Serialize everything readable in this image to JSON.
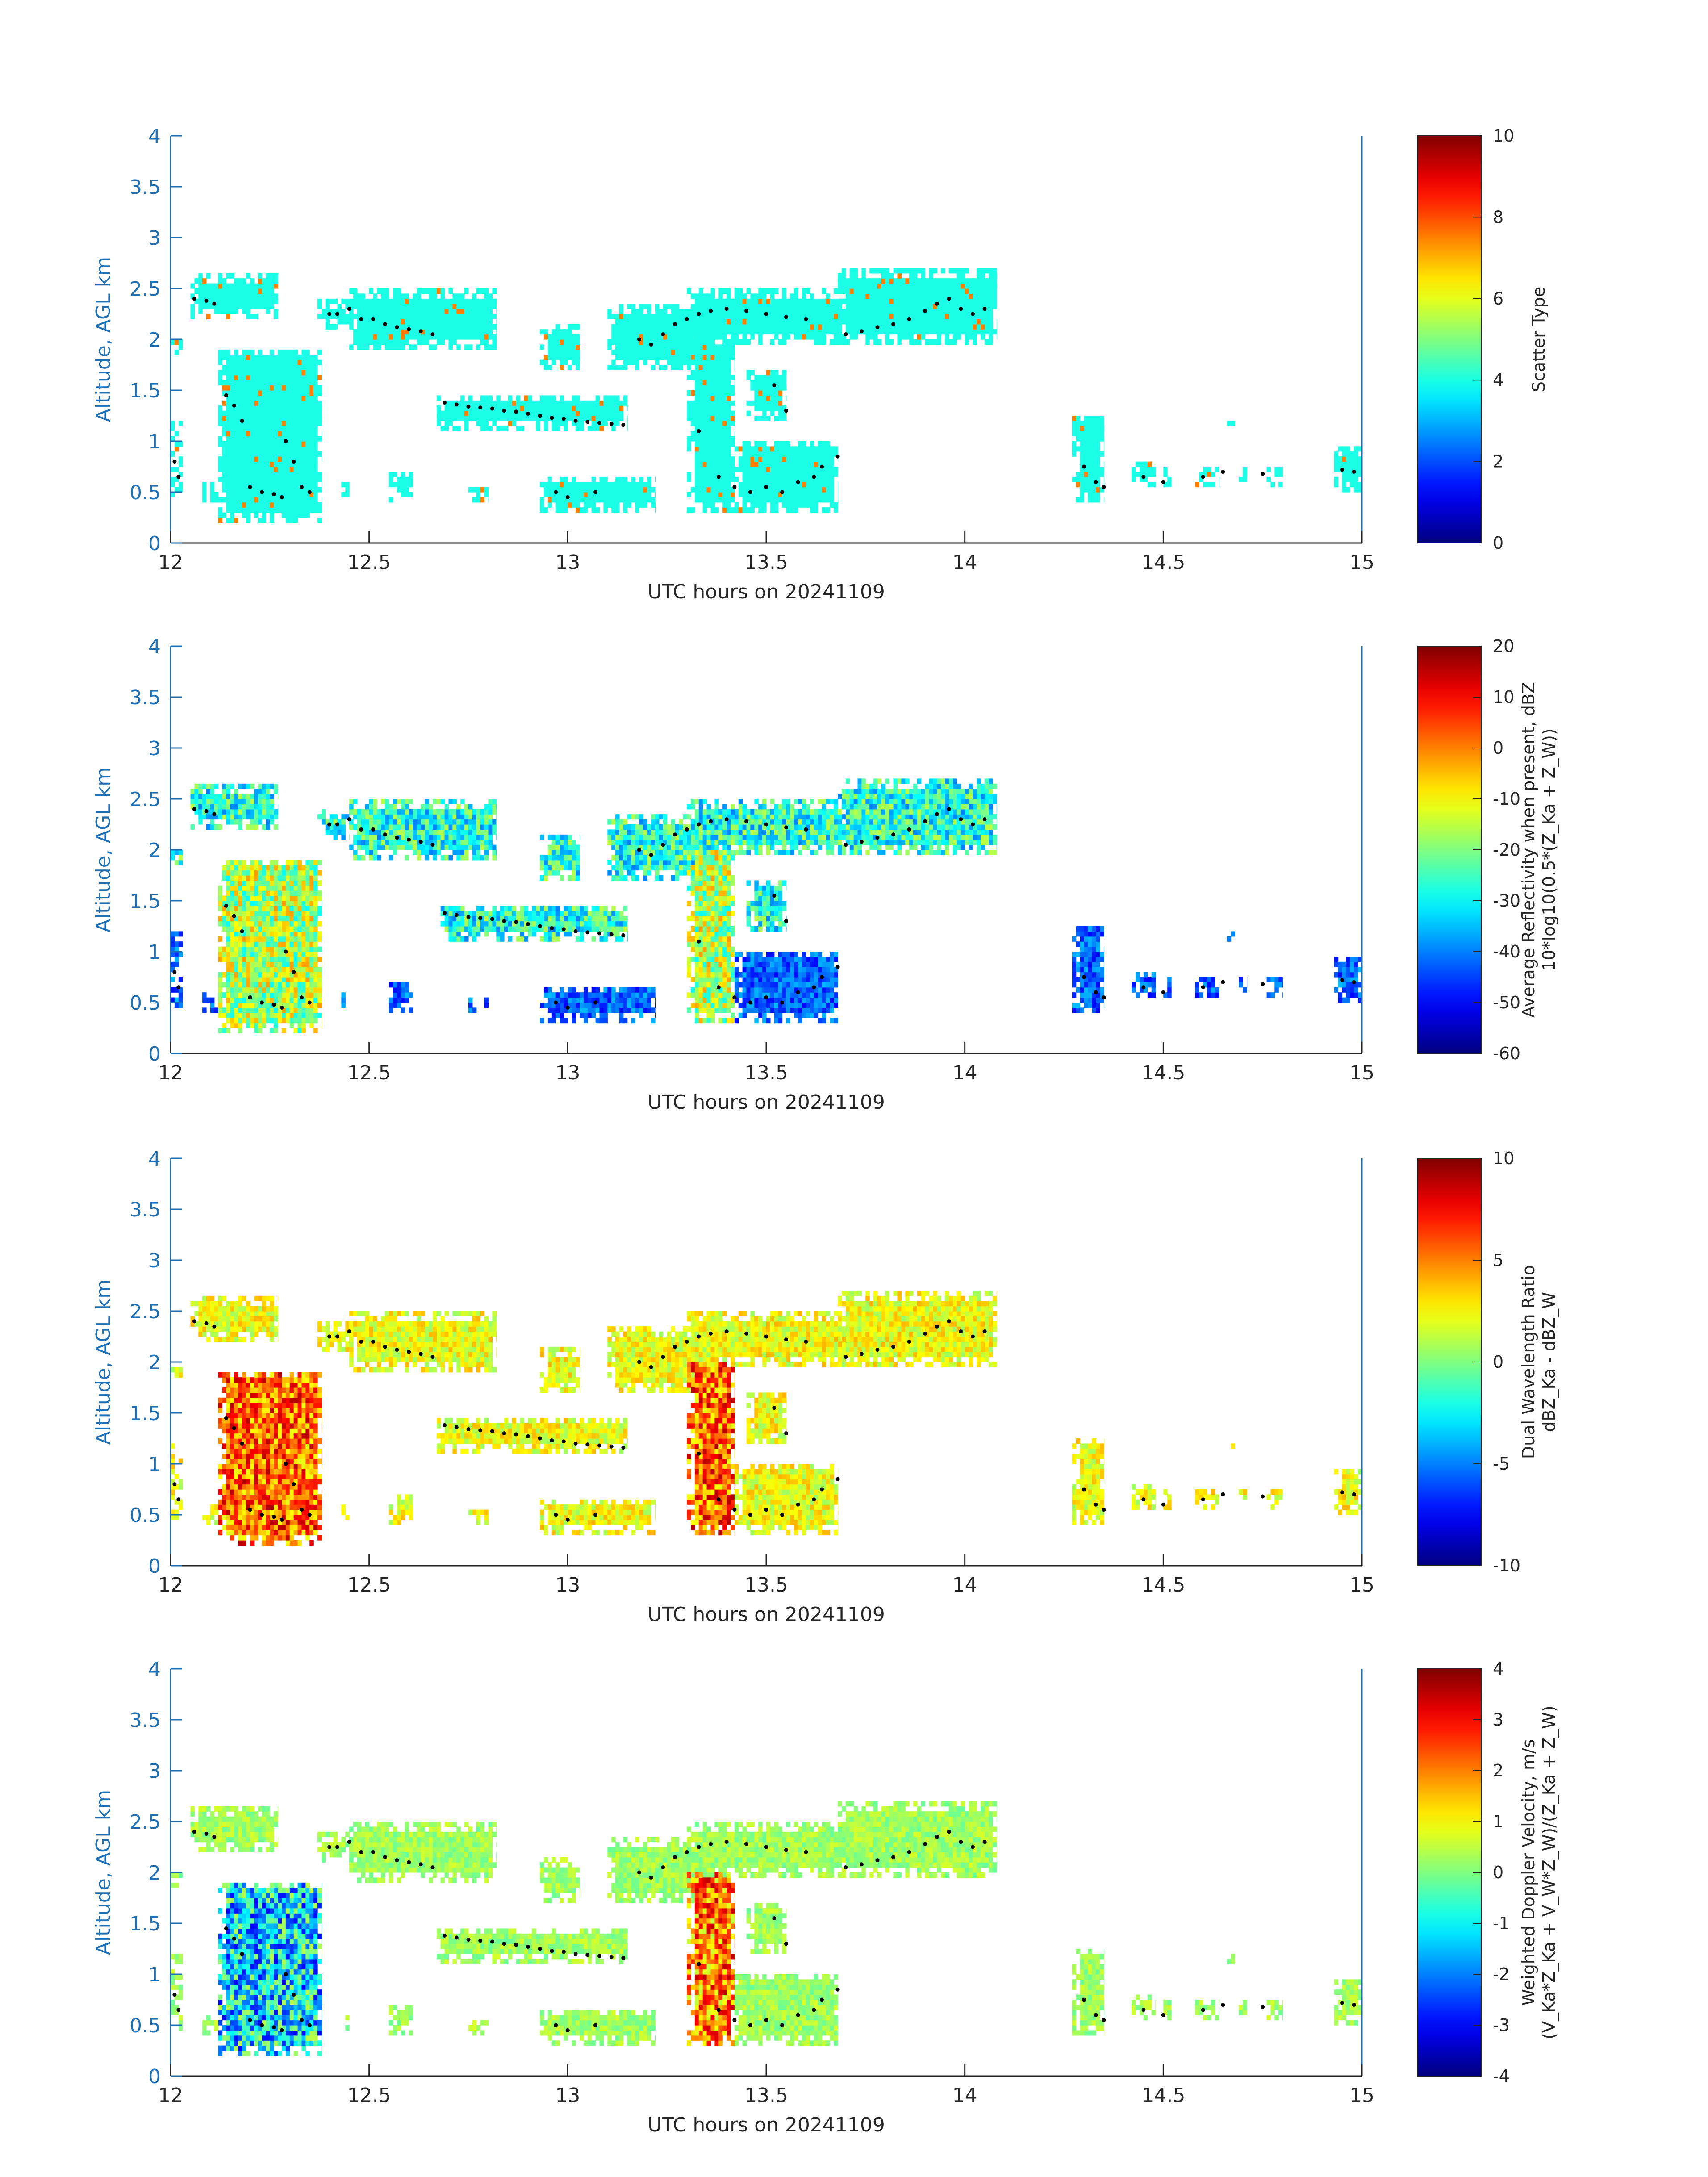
{
  "chart_data": [
    {
      "type": "heatmap",
      "xlabel": "UTC hours on 20241109",
      "ylabel": "Altitude, AGL km",
      "xlim": [
        12,
        15
      ],
      "ylim": [
        0,
        4
      ],
      "xticks": [
        "12",
        "12.5",
        "13",
        "13.5",
        "14",
        "14.5",
        "15"
      ],
      "yticks": [
        "0",
        "0.5",
        "1",
        "1.5",
        "2",
        "2.5",
        "3",
        "3.5",
        "4"
      ],
      "colorbar": {
        "label_lines": [
          "Scatter Type"
        ],
        "range": [
          0,
          10
        ],
        "ticks": [
          "0",
          "2",
          "4",
          "6",
          "8",
          "10"
        ],
        "colormap": "jet"
      },
      "approx_values": {
        "cloud_body": 4,
        "red_pixels": 7.5
      }
    },
    {
      "type": "heatmap",
      "xlabel": "UTC hours on 20241109",
      "ylabel": "Altitude, AGL km",
      "xlim": [
        12,
        15
      ],
      "ylim": [
        0,
        4
      ],
      "xticks": [
        "12",
        "12.5",
        "13",
        "13.5",
        "14",
        "14.5",
        "15"
      ],
      "yticks": [
        "0",
        "0.5",
        "1",
        "1.5",
        "2",
        "2.5",
        "3",
        "3.5",
        "4"
      ],
      "colorbar": {
        "label_lines": [
          "Average Reflectivity when present, dBZ",
          "10*log10(0.5*(Z_Ka + Z_W))"
        ],
        "range": [
          -60,
          20
        ],
        "ticks": [
          "-60",
          "-50",
          "-40",
          "-30",
          "-20",
          "-10",
          "0",
          "10",
          "20"
        ],
        "colormap": "jet"
      }
    },
    {
      "type": "heatmap",
      "xlabel": "UTC hours on 20241109",
      "ylabel": "Altitude, AGL km",
      "xlim": [
        12,
        15
      ],
      "ylim": [
        0,
        4
      ],
      "xticks": [
        "12",
        "12.5",
        "13",
        "13.5",
        "14",
        "14.5",
        "15"
      ],
      "yticks": [
        "0",
        "0.5",
        "1",
        "1.5",
        "2",
        "2.5",
        "3",
        "3.5",
        "4"
      ],
      "colorbar": {
        "label_lines": [
          "Dual Wavelength Ratio",
          "dBZ_Ka - dBZ_W"
        ],
        "range": [
          -10,
          10
        ],
        "ticks": [
          "-10",
          "-5",
          "0",
          "5",
          "10"
        ],
        "colormap": "jet"
      }
    },
    {
      "type": "heatmap",
      "xlabel": "UTC hours on 20241109",
      "ylabel": "Altitude, AGL km",
      "xlim": [
        12,
        15
      ],
      "ylim": [
        0,
        4
      ],
      "xticks": [
        "12",
        "12.5",
        "13",
        "13.5",
        "14",
        "14.5",
        "15"
      ],
      "yticks": [
        "0",
        "0.5",
        "1",
        "1.5",
        "2",
        "2.5",
        "3",
        "3.5",
        "4"
      ],
      "colorbar": {
        "label_lines": [
          "Weighted Doppler Velocity, m/s",
          "(V_Ka*Z_Ka + V_W*Z_W)/(Z_Ka + Z_W)"
        ],
        "range": [
          -4,
          4
        ],
        "ticks": [
          "-4",
          "-3",
          "-2",
          "-1",
          "0",
          "1",
          "2",
          "3",
          "4"
        ],
        "colormap": "jet"
      }
    }
  ],
  "overlay": {
    "name": "black dot track",
    "points": [
      [
        12.01,
        0.8
      ],
      [
        12.02,
        0.65
      ],
      [
        12.06,
        2.4
      ],
      [
        12.09,
        2.38
      ],
      [
        12.11,
        2.35
      ],
      [
        12.14,
        1.45
      ],
      [
        12.16,
        1.35
      ],
      [
        12.18,
        1.2
      ],
      [
        12.2,
        0.55
      ],
      [
        12.23,
        0.5
      ],
      [
        12.26,
        0.48
      ],
      [
        12.28,
        0.45
      ],
      [
        12.29,
        1.0
      ],
      [
        12.31,
        0.8
      ],
      [
        12.33,
        0.55
      ],
      [
        12.35,
        0.5
      ],
      [
        12.4,
        2.25
      ],
      [
        12.42,
        2.25
      ],
      [
        12.45,
        2.3
      ],
      [
        12.48,
        2.2
      ],
      [
        12.51,
        2.2
      ],
      [
        12.54,
        2.15
      ],
      [
        12.57,
        2.12
      ],
      [
        12.6,
        2.1
      ],
      [
        12.63,
        2.08
      ],
      [
        12.66,
        2.05
      ],
      [
        12.69,
        1.38
      ],
      [
        12.72,
        1.36
      ],
      [
        12.75,
        1.34
      ],
      [
        12.78,
        1.33
      ],
      [
        12.81,
        1.32
      ],
      [
        12.84,
        1.3
      ],
      [
        12.87,
        1.29
      ],
      [
        12.9,
        1.27
      ],
      [
        12.93,
        1.25
      ],
      [
        12.96,
        1.23
      ],
      [
        12.99,
        1.22
      ],
      [
        13.02,
        1.2
      ],
      [
        13.05,
        1.19
      ],
      [
        13.08,
        1.18
      ],
      [
        13.11,
        1.17
      ],
      [
        13.14,
        1.16
      ],
      [
        12.97,
        0.5
      ],
      [
        13.0,
        0.45
      ],
      [
        13.07,
        0.5
      ],
      [
        13.18,
        2.0
      ],
      [
        13.21,
        1.95
      ],
      [
        13.24,
        2.05
      ],
      [
        13.27,
        2.15
      ],
      [
        13.3,
        2.2
      ],
      [
        13.33,
        2.25
      ],
      [
        13.36,
        2.28
      ],
      [
        13.4,
        2.3
      ],
      [
        13.45,
        2.28
      ],
      [
        13.5,
        2.25
      ],
      [
        13.55,
        2.22
      ],
      [
        13.6,
        2.2
      ],
      [
        13.33,
        1.1
      ],
      [
        13.38,
        0.65
      ],
      [
        13.42,
        0.55
      ],
      [
        13.46,
        0.5
      ],
      [
        13.5,
        0.55
      ],
      [
        13.54,
        0.5
      ],
      [
        13.58,
        0.6
      ],
      [
        13.62,
        0.65
      ],
      [
        13.64,
        0.75
      ],
      [
        13.68,
        0.85
      ],
      [
        13.52,
        1.55
      ],
      [
        13.55,
        1.3
      ],
      [
        13.7,
        2.05
      ],
      [
        13.74,
        2.08
      ],
      [
        13.78,
        2.12
      ],
      [
        13.82,
        2.15
      ],
      [
        13.86,
        2.2
      ],
      [
        13.9,
        2.28
      ],
      [
        13.93,
        2.35
      ],
      [
        13.96,
        2.4
      ],
      [
        13.99,
        2.3
      ],
      [
        14.02,
        2.25
      ],
      [
        14.05,
        2.3
      ],
      [
        14.3,
        0.75
      ],
      [
        14.33,
        0.6
      ],
      [
        14.35,
        0.55
      ],
      [
        14.45,
        0.65
      ],
      [
        14.5,
        0.6
      ],
      [
        14.6,
        0.65
      ],
      [
        14.65,
        0.7
      ],
      [
        14.75,
        0.68
      ],
      [
        14.95,
        0.72
      ],
      [
        14.98,
        0.7
      ]
    ]
  }
}
